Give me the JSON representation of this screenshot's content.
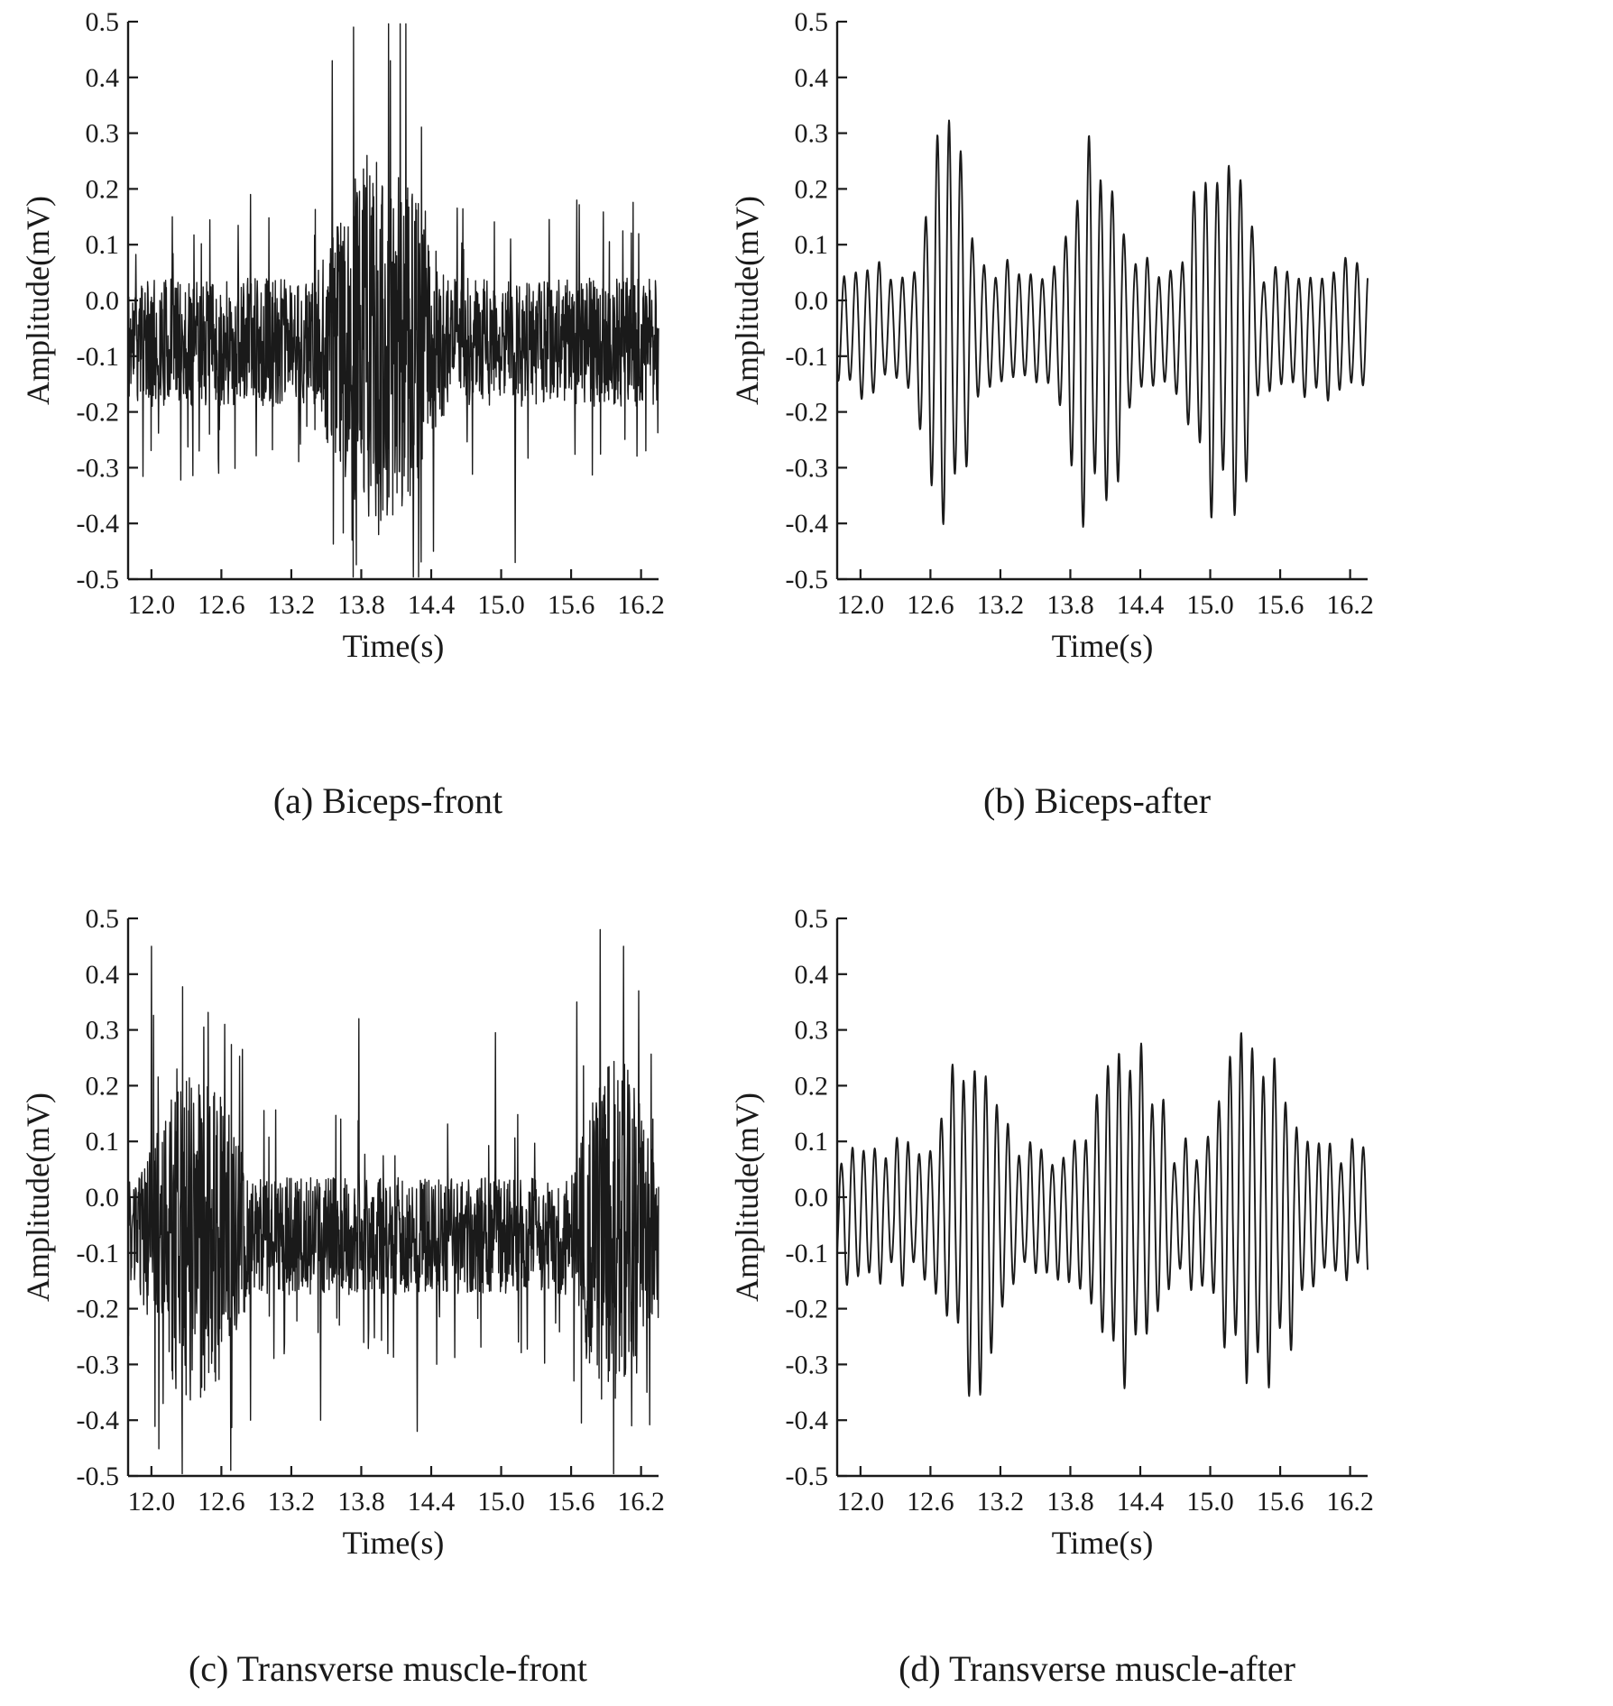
{
  "figure": {
    "background": "#ffffff",
    "line_color": "#1a1a1a",
    "axis_color": "#1a1a1a"
  },
  "chart_data": [
    {
      "id": "a",
      "type": "line",
      "caption": "(a) Biceps-front",
      "xlabel": "Time(s)",
      "ylabel": "Amplitude(mV)",
      "xlim": [
        11.8,
        16.35
      ],
      "ylim": [
        -0.5,
        0.5
      ],
      "xticks": [
        12.0,
        12.6,
        13.2,
        13.8,
        14.4,
        15.0,
        15.6,
        16.2
      ],
      "yticks": [
        -0.5,
        -0.4,
        -0.3,
        -0.2,
        -0.1,
        0.0,
        0.1,
        0.2,
        0.3,
        0.4,
        0.5
      ],
      "legend": false,
      "grid": false,
      "signal": {
        "style": "noisy",
        "seed": 11,
        "baseline": -0.075,
        "noise_amp": 0.115,
        "bursts": [
          {
            "start": 13.4,
            "end": 14.55,
            "amp": 0.22
          }
        ],
        "spikes": [
          {
            "t": 12.18,
            "amp": 0.15
          },
          {
            "t": 12.41,
            "amp": -0.27
          },
          {
            "t": 12.85,
            "amp": 0.19
          },
          {
            "t": 13.55,
            "amp": 0.43
          },
          {
            "t": 13.72,
            "amp": -0.43
          },
          {
            "t": 13.85,
            "amp": 0.26
          },
          {
            "t": 13.95,
            "amp": -0.42
          },
          {
            "t": 14.05,
            "amp": 0.43
          },
          {
            "t": 14.12,
            "amp": 0.22
          },
          {
            "t": 14.22,
            "amp": -0.35
          },
          {
            "t": 14.35,
            "amp": 0.16
          },
          {
            "t": 14.42,
            "amp": -0.45
          },
          {
            "t": 15.08,
            "amp": 0.11
          },
          {
            "t": 15.12,
            "amp": -0.47
          },
          {
            "t": 15.65,
            "amp": 0.18
          }
        ]
      }
    },
    {
      "id": "b",
      "type": "line",
      "caption": "(b) Biceps-after",
      "xlabel": "Time(s)",
      "ylabel": "Amplitude(mV)",
      "xlim": [
        11.8,
        16.35
      ],
      "ylim": [
        -0.5,
        0.5
      ],
      "xticks": [
        12.0,
        12.6,
        13.2,
        13.8,
        14.4,
        15.0,
        15.6,
        16.2
      ],
      "yticks": [
        -0.5,
        -0.4,
        -0.3,
        -0.2,
        -0.1,
        0.0,
        0.1,
        0.2,
        0.3,
        0.4,
        0.5
      ],
      "legend": false,
      "grid": false,
      "signal": {
        "style": "smooth",
        "seed": 22,
        "baseline": -0.05,
        "base_amp": 0.11,
        "freq": 10,
        "bursts": [
          {
            "start": 12.45,
            "end": 13.05,
            "amp": 0.23
          },
          {
            "start": 13.65,
            "end": 14.35,
            "amp": 0.23
          },
          {
            "start": 14.75,
            "end": 15.45,
            "amp": 0.22
          }
        ],
        "spikes": []
      }
    },
    {
      "id": "c",
      "type": "line",
      "caption": "(c) Transverse muscle-front",
      "xlabel": "Time(s)",
      "ylabel": "Amplitude(mV)",
      "xlim": [
        11.8,
        16.35
      ],
      "ylim": [
        -0.5,
        0.5
      ],
      "xticks": [
        12.0,
        12.6,
        13.2,
        13.8,
        14.4,
        15.0,
        15.6,
        16.2
      ],
      "yticks": [
        -0.5,
        -0.4,
        -0.3,
        -0.2,
        -0.1,
        0.0,
        0.1,
        0.2,
        0.3,
        0.4,
        0.5
      ],
      "legend": false,
      "grid": false,
      "signal": {
        "style": "noisy",
        "seed": 33,
        "baseline": -0.07,
        "noise_amp": 0.105,
        "bursts": [
          {
            "start": 11.9,
            "end": 12.85,
            "amp": 0.2
          },
          {
            "start": 15.6,
            "end": 16.35,
            "amp": 0.22
          }
        ],
        "spikes": [
          {
            "t": 12.0,
            "amp": 0.45
          },
          {
            "t": 12.1,
            "amp": -0.37
          },
          {
            "t": 12.22,
            "amp": 0.23
          },
          {
            "t": 12.35,
            "amp": -0.31
          },
          {
            "t": 12.45,
            "amp": 0.305
          },
          {
            "t": 12.55,
            "amp": -0.33
          },
          {
            "t": 12.63,
            "amp": 0.31
          },
          {
            "t": 12.68,
            "amp": -0.49
          },
          {
            "t": 12.78,
            "amp": 0.265
          },
          {
            "t": 12.85,
            "amp": -0.4
          },
          {
            "t": 13.45,
            "amp": -0.4
          },
          {
            "t": 13.78,
            "amp": 0.32
          },
          {
            "t": 14.28,
            "amp": -0.42
          },
          {
            "t": 14.95,
            "amp": 0.295
          },
          {
            "t": 15.65,
            "amp": 0.35
          },
          {
            "t": 15.75,
            "amp": -0.25
          },
          {
            "t": 15.85,
            "amp": 0.48
          },
          {
            "t": 15.95,
            "amp": -0.28
          },
          {
            "t": 16.05,
            "amp": 0.45
          },
          {
            "t": 16.12,
            "amp": -0.41
          },
          {
            "t": 16.18,
            "amp": 0.37
          },
          {
            "t": 16.25,
            "amp": -0.35
          }
        ]
      }
    },
    {
      "id": "d",
      "type": "line",
      "caption": "(d) Transverse muscle-after",
      "xlabel": "Time(s)",
      "ylabel": "Amplitude(mV)",
      "xlim": [
        11.8,
        16.35
      ],
      "ylim": [
        -0.5,
        0.5
      ],
      "xticks": [
        12.0,
        12.6,
        13.2,
        13.8,
        14.4,
        15.0,
        15.6,
        16.2
      ],
      "yticks": [
        -0.5,
        -0.4,
        -0.3,
        -0.2,
        -0.1,
        0.0,
        0.1,
        0.2,
        0.3,
        0.4,
        0.5
      ],
      "legend": false,
      "grid": false,
      "signal": {
        "style": "smooth",
        "seed": 44,
        "baseline": -0.03,
        "base_amp": 0.115,
        "freq": 10.5,
        "bursts": [
          {
            "start": 12.6,
            "end": 13.35,
            "amp": 0.16
          },
          {
            "start": 13.9,
            "end": 14.7,
            "amp": 0.17
          },
          {
            "start": 14.95,
            "end": 15.85,
            "amp": 0.19
          }
        ],
        "spikes": []
      }
    }
  ]
}
